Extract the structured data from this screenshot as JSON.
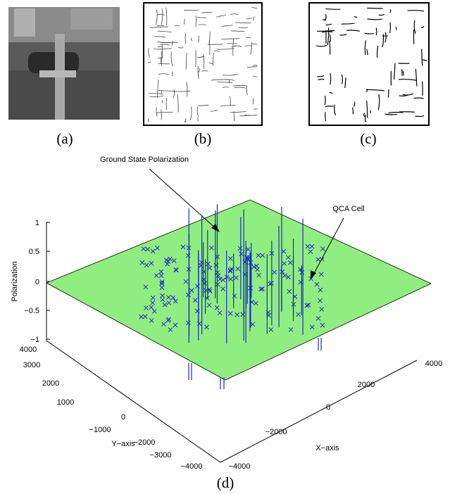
{
  "panels": [
    {
      "label": "(a)"
    },
    {
      "label": "(b)"
    },
    {
      "label": "(c)"
    }
  ],
  "plot": {
    "z_axis_label": "Polarization",
    "x_axis_label": "X−axis",
    "y_axis_label": "Y−axis",
    "z_ticks": [
      "1",
      "0.5",
      "0",
      "−0.5",
      "−1"
    ],
    "y_ticks": [
      "4000",
      "3000",
      "2000",
      "1000",
      "0",
      "−1000",
      "−2000",
      "−3000",
      "−4000"
    ],
    "x_ticks": [
      "−4000",
      "−2000",
      "0",
      "2000",
      "4000"
    ],
    "annotations": [
      "Ground State Polarization",
      "QCA Cell"
    ],
    "caption": "(d)"
  }
}
